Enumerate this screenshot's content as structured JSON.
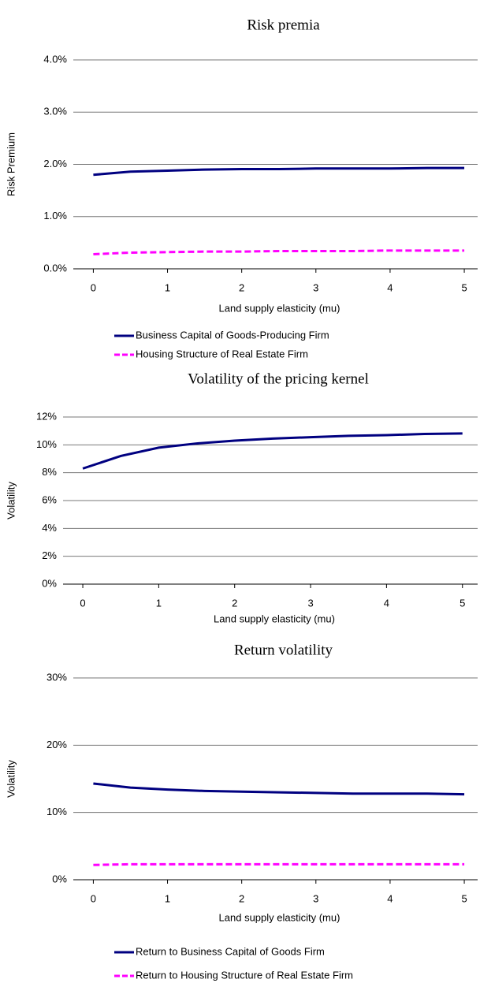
{
  "chart_data": [
    {
      "type": "line",
      "title": "Risk premia",
      "xlabel": "Land supply elasticity (mu)",
      "ylabel": "Risk Premium",
      "x": [
        0,
        0.5,
        1,
        1.5,
        2,
        2.5,
        3,
        3.5,
        4,
        4.5,
        5
      ],
      "series": [
        {
          "name": "Business Capital of Goods-Producing Firm",
          "color": "#000080",
          "values": [
            1.8,
            1.86,
            1.88,
            1.9,
            1.91,
            1.91,
            1.92,
            1.92,
            1.92,
            1.93,
            1.93
          ]
        },
        {
          "name": "Housing Structure of Real Estate Firm",
          "color": "#ff00ff",
          "dashed": true,
          "values": [
            0.28,
            0.31,
            0.32,
            0.33,
            0.33,
            0.34,
            0.34,
            0.34,
            0.35,
            0.35,
            0.35
          ]
        }
      ],
      "xlim": [
        -0.27,
        5.18
      ],
      "xticks": [
        0,
        1,
        2,
        3,
        4,
        5
      ],
      "ylim": [
        0,
        4
      ],
      "yticks": [
        {
          "value": 0,
          "label": "0.0%"
        },
        {
          "value": 1,
          "label": "1.0%"
        },
        {
          "value": 2,
          "label": "2.0%"
        },
        {
          "value": 3,
          "label": "3.0%"
        },
        {
          "value": 4,
          "label": "4.0%"
        }
      ],
      "grid": true
    },
    {
      "type": "line",
      "title": "Volatility of the pricing kernel",
      "xlabel": "Land supply elasticity (mu)",
      "ylabel": "Volatility",
      "x": [
        0,
        0.5,
        1,
        1.5,
        2,
        2.5,
        3,
        3.5,
        4,
        4.5,
        5
      ],
      "series": [
        {
          "color": "#000080",
          "values": [
            8.3,
            9.2,
            9.8,
            10.1,
            10.3,
            10.45,
            10.55,
            10.65,
            10.7,
            10.78,
            10.82
          ]
        }
      ],
      "xlim": [
        -0.26,
        5.2
      ],
      "xticks": [
        0,
        1,
        2,
        3,
        4,
        5
      ],
      "ylim": [
        0,
        12
      ],
      "yticks": [
        {
          "value": 0,
          "label": "0%"
        },
        {
          "value": 2,
          "label": "2%"
        },
        {
          "value": 4,
          "label": "4%"
        },
        {
          "value": 6,
          "label": "6%"
        },
        {
          "value": 8,
          "label": "8%"
        },
        {
          "value": 10,
          "label": "10%"
        },
        {
          "value": 12,
          "label": "12%"
        }
      ],
      "grid": true
    },
    {
      "type": "line",
      "title": "Return volatility",
      "xlabel": "Land supply elasticity (mu)",
      "ylabel": "Volatility",
      "x": [
        0,
        0.5,
        1,
        1.5,
        2,
        2.5,
        3,
        3.5,
        4,
        4.5,
        5
      ],
      "series": [
        {
          "name": "Return to Business Capital of Goods Firm",
          "color": "#000080",
          "values": [
            14.3,
            13.7,
            13.4,
            13.2,
            13.1,
            13.0,
            12.9,
            12.8,
            12.8,
            12.8,
            12.7
          ]
        },
        {
          "name": "Return to Housing Structure of Real Estate Firm",
          "color": "#ff00ff",
          "dashed": true,
          "values": [
            2.2,
            2.3,
            2.3,
            2.3,
            2.3,
            2.3,
            2.3,
            2.3,
            2.3,
            2.3,
            2.3
          ]
        }
      ],
      "xlim": [
        -0.27,
        5.18
      ],
      "xticks": [
        0,
        1,
        2,
        3,
        4,
        5
      ],
      "ylim": [
        0,
        30
      ],
      "yticks": [
        {
          "value": 0,
          "label": "0%"
        },
        {
          "value": 10,
          "label": "10%"
        },
        {
          "value": 20,
          "label": "20%"
        },
        {
          "value": 30,
          "label": "30%"
        }
      ],
      "grid": true
    }
  ]
}
